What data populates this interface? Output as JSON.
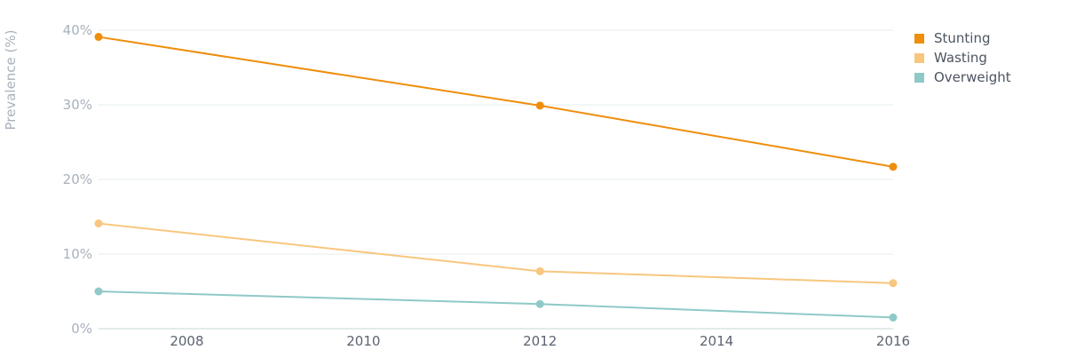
{
  "chart_data": {
    "type": "line",
    "title": "",
    "xlabel": "",
    "ylabel": "Prevalence (%)",
    "x": [
      2007,
      2012,
      2016
    ],
    "xlim": [
      2007,
      2016
    ],
    "ylim": [
      0,
      40
    ],
    "x_ticks": [
      {
        "value": 2008,
        "label": "2008"
      },
      {
        "value": 2010,
        "label": "2010"
      },
      {
        "value": 2012,
        "label": "2012"
      },
      {
        "value": 2014,
        "label": "2014"
      },
      {
        "value": 2016,
        "label": "2016"
      }
    ],
    "y_ticks": [
      {
        "value": 0,
        "label": "0%"
      },
      {
        "value": 10,
        "label": "10%"
      },
      {
        "value": 20,
        "label": "20%"
      },
      {
        "value": 30,
        "label": "30%"
      },
      {
        "value": 40,
        "label": "40%"
      }
    ],
    "grid": true,
    "legend_position": "top-right",
    "series": [
      {
        "name": "Stunting",
        "color": "#ee8e0b",
        "values": [
          39.1,
          29.9,
          21.7
        ]
      },
      {
        "name": "Wasting",
        "color": "#f8c67e",
        "values": [
          14.1,
          7.7,
          6.1
        ]
      },
      {
        "name": "Overweight",
        "color": "#8fc9c7",
        "values": [
          5.0,
          3.3,
          1.5
        ]
      }
    ]
  }
}
